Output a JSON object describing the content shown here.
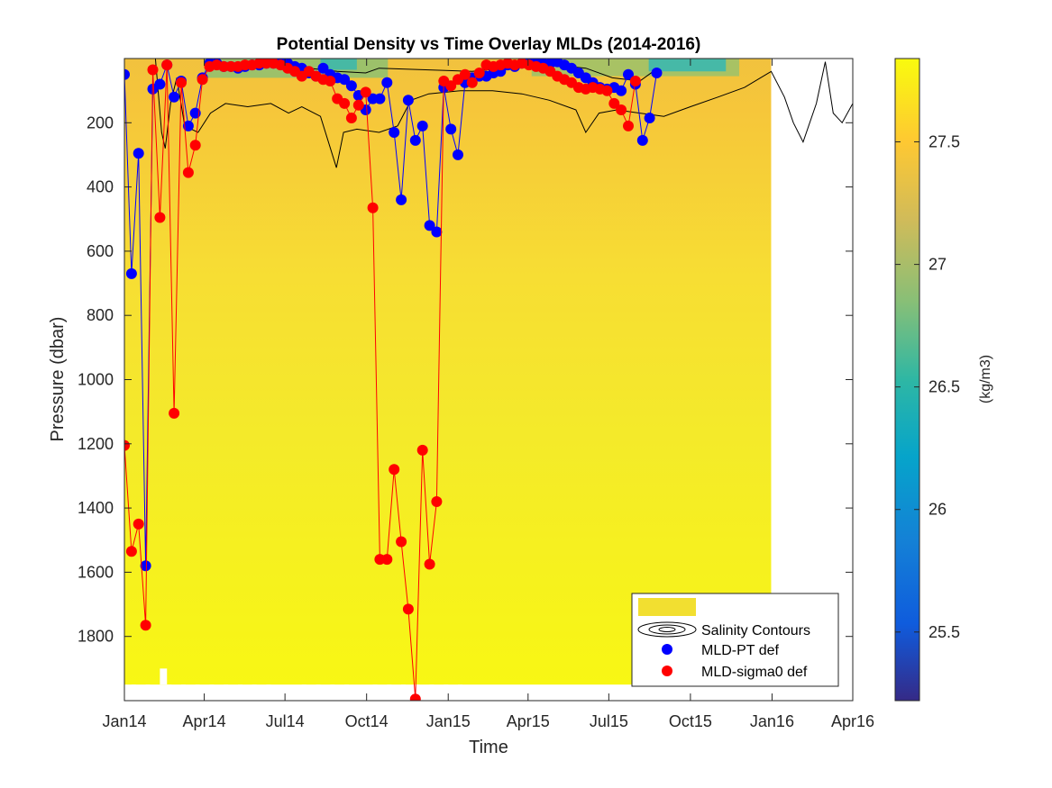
{
  "chart_data": {
    "type": "scatter",
    "title": "Potential Density vs Time Overlay MLDs (2014-2016)",
    "xlabel": "Time",
    "ylabel": "Pressure (dbar)",
    "x_ticks": [
      "Jan14",
      "Apr14",
      "Jul14",
      "Oct14",
      "Jan15",
      "Apr15",
      "Jul15",
      "Oct15",
      "Jan16",
      "Apr16"
    ],
    "x_range": [
      "2014-01-01",
      "2016-04-01"
    ],
    "y_range": [
      0,
      2000
    ],
    "y_reversed": true,
    "y_ticks": [
      200,
      400,
      600,
      800,
      1000,
      1200,
      1400,
      1600,
      1800
    ],
    "colorbar": {
      "label": "(kg/m3)",
      "range": [
        25.22,
        27.84
      ],
      "ticks": [
        25.5,
        26,
        26.5,
        27,
        27.5
      ],
      "colormap": "parula"
    },
    "legend": {
      "location": "bottom-right",
      "entries": [
        "",
        "Salinity Contours",
        "MLD-PT def",
        "MLD-sigma0 def"
      ],
      "colors": {
        "density_patch": "#f2df30",
        "pt": "#0000ff",
        "sigma0": "#ff0000"
      }
    },
    "series": [
      {
        "name": "MLD-PT def",
        "color": "#0000ff",
        "points": [
          [
            "2014-01-01",
            50
          ],
          [
            "2014-01-09",
            670
          ],
          [
            "2014-01-17",
            295
          ],
          [
            "2014-01-25",
            1580
          ],
          [
            "2014-02-02",
            95
          ],
          [
            "2014-02-10",
            80
          ],
          [
            "2014-02-18",
            20
          ],
          [
            "2014-02-26",
            120
          ],
          [
            "2014-03-06",
            70
          ],
          [
            "2014-03-14",
            210
          ],
          [
            "2014-03-22",
            170
          ],
          [
            "2014-03-30",
            60
          ],
          [
            "2014-04-07",
            15
          ],
          [
            "2014-04-15",
            15
          ],
          [
            "2014-04-23",
            25
          ],
          [
            "2014-05-01",
            25
          ],
          [
            "2014-05-09",
            30
          ],
          [
            "2014-05-17",
            25
          ],
          [
            "2014-05-25",
            20
          ],
          [
            "2014-06-02",
            20
          ],
          [
            "2014-06-10",
            15
          ],
          [
            "2014-06-18",
            15
          ],
          [
            "2014-06-26",
            10
          ],
          [
            "2014-07-04",
            15
          ],
          [
            "2014-07-12",
            25
          ],
          [
            "2014-07-20",
            30
          ],
          [
            "2014-07-28",
            45
          ],
          [
            "2014-08-05",
            55
          ],
          [
            "2014-08-13",
            30
          ],
          [
            "2014-08-21",
            50
          ],
          [
            "2014-08-29",
            60
          ],
          [
            "2014-09-06",
            65
          ],
          [
            "2014-09-14",
            85
          ],
          [
            "2014-09-22",
            115
          ],
          [
            "2014-09-30",
            160
          ],
          [
            "2014-10-08",
            125
          ],
          [
            "2014-10-16",
            125
          ],
          [
            "2014-10-24",
            75
          ],
          [
            "2014-11-01",
            230
          ],
          [
            "2014-11-09",
            440
          ],
          [
            "2014-11-17",
            130
          ],
          [
            "2014-11-25",
            255
          ],
          [
            "2014-12-03",
            210
          ],
          [
            "2014-12-11",
            520
          ],
          [
            "2014-12-19",
            540
          ],
          [
            "2014-12-27",
            90
          ],
          [
            "2015-01-04",
            220
          ],
          [
            "2015-01-12",
            300
          ],
          [
            "2015-01-20",
            75
          ],
          [
            "2015-01-28",
            60
          ],
          [
            "2015-02-05",
            55
          ],
          [
            "2015-02-13",
            55
          ],
          [
            "2015-02-21",
            45
          ],
          [
            "2015-03-01",
            40
          ],
          [
            "2015-03-09",
            20
          ],
          [
            "2015-03-17",
            25
          ],
          [
            "2015-03-25",
            15
          ],
          [
            "2015-04-02",
            10
          ],
          [
            "2015-04-10",
            10
          ],
          [
            "2015-04-18",
            15
          ],
          [
            "2015-04-26",
            15
          ],
          [
            "2015-05-04",
            10
          ],
          [
            "2015-05-12",
            20
          ],
          [
            "2015-05-20",
            30
          ],
          [
            "2015-05-28",
            45
          ],
          [
            "2015-06-05",
            60
          ],
          [
            "2015-06-13",
            75
          ],
          [
            "2015-06-21",
            90
          ],
          [
            "2015-06-29",
            95
          ],
          [
            "2015-07-07",
            90
          ],
          [
            "2015-07-15",
            100
          ],
          [
            "2015-07-23",
            50
          ],
          [
            "2015-07-31",
            80
          ],
          [
            "2015-08-08",
            255
          ],
          [
            "2015-08-16",
            185
          ],
          [
            "2015-08-24",
            45
          ]
        ]
      },
      {
        "name": "MLD-sigma0 def",
        "color": "#ff0000",
        "points": [
          [
            "2014-01-01",
            1205
          ],
          [
            "2014-01-09",
            1535
          ],
          [
            "2014-01-17",
            1450
          ],
          [
            "2014-01-25",
            1765
          ],
          [
            "2014-02-02",
            35
          ],
          [
            "2014-02-10",
            495
          ],
          [
            "2014-02-18",
            20
          ],
          [
            "2014-02-26",
            1105
          ],
          [
            "2014-03-06",
            75
          ],
          [
            "2014-03-14",
            355
          ],
          [
            "2014-03-22",
            270
          ],
          [
            "2014-03-30",
            65
          ],
          [
            "2014-04-07",
            25
          ],
          [
            "2014-04-15",
            20
          ],
          [
            "2014-04-23",
            25
          ],
          [
            "2014-05-01",
            25
          ],
          [
            "2014-05-09",
            25
          ],
          [
            "2014-05-17",
            20
          ],
          [
            "2014-05-25",
            20
          ],
          [
            "2014-06-02",
            15
          ],
          [
            "2014-06-10",
            15
          ],
          [
            "2014-06-18",
            15
          ],
          [
            "2014-06-26",
            20
          ],
          [
            "2014-07-04",
            30
          ],
          [
            "2014-07-12",
            40
          ],
          [
            "2014-07-20",
            55
          ],
          [
            "2014-07-28",
            40
          ],
          [
            "2014-08-05",
            55
          ],
          [
            "2014-08-13",
            65
          ],
          [
            "2014-08-21",
            70
          ],
          [
            "2014-08-29",
            125
          ],
          [
            "2014-09-06",
            140
          ],
          [
            "2014-09-14",
            185
          ],
          [
            "2014-09-22",
            145
          ],
          [
            "2014-09-30",
            105
          ],
          [
            "2014-10-08",
            465
          ],
          [
            "2014-10-16",
            1560
          ],
          [
            "2014-10-24",
            1560
          ],
          [
            "2014-11-01",
            1280
          ],
          [
            "2014-11-09",
            1505
          ],
          [
            "2014-11-17",
            1715
          ],
          [
            "2014-11-25",
            1995
          ],
          [
            "2014-12-03",
            1220
          ],
          [
            "2014-12-11",
            1575
          ],
          [
            "2014-12-19",
            1380
          ],
          [
            "2014-12-27",
            70
          ],
          [
            "2015-01-04",
            85
          ],
          [
            "2015-01-12",
            65
          ],
          [
            "2015-01-20",
            50
          ],
          [
            "2015-01-28",
            75
          ],
          [
            "2015-02-05",
            45
          ],
          [
            "2015-02-13",
            20
          ],
          [
            "2015-02-21",
            25
          ],
          [
            "2015-03-01",
            20
          ],
          [
            "2015-03-09",
            15
          ],
          [
            "2015-03-17",
            20
          ],
          [
            "2015-03-25",
            15
          ],
          [
            "2015-04-02",
            20
          ],
          [
            "2015-04-10",
            25
          ],
          [
            "2015-04-18",
            30
          ],
          [
            "2015-04-26",
            40
          ],
          [
            "2015-05-04",
            55
          ],
          [
            "2015-05-12",
            65
          ],
          [
            "2015-05-20",
            75
          ],
          [
            "2015-05-28",
            90
          ],
          [
            "2015-06-05",
            95
          ],
          [
            "2015-06-13",
            90
          ],
          [
            "2015-06-21",
            95
          ],
          [
            "2015-06-29",
            100
          ],
          [
            "2015-07-07",
            140
          ],
          [
            "2015-07-15",
            160
          ],
          [
            "2015-07-23",
            210
          ],
          [
            "2015-07-31",
            70
          ]
        ]
      }
    ]
  }
}
